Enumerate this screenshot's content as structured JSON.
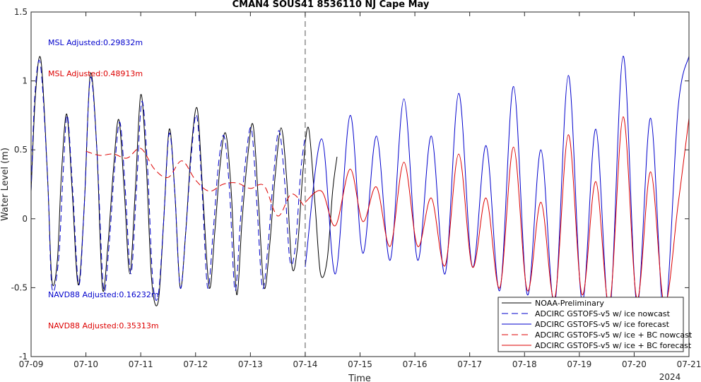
{
  "chart_data": {
    "type": "line",
    "title": "CMAN4 SOUS41 8536110 NJ Cape May",
    "xlabel": "Time",
    "ylabel": "Water Level (m)",
    "x_unit": "days (07-09 .. 07-21)",
    "xlim": [
      0,
      12
    ],
    "ylim": [
      -1,
      1.5
    ],
    "x_ticks": [
      "07-09",
      "07-10",
      "07-11",
      "07-12",
      "07-13",
      "07-14",
      "07-15",
      "07-16",
      "07-17",
      "07-18",
      "07-19",
      "07-20",
      "07-21"
    ],
    "x_year_label": "2024",
    "y_ticks": [
      "-1",
      "-0.5",
      "0",
      "0.5",
      "1",
      "1.5"
    ],
    "y_tick_values": [
      -1,
      -0.5,
      0,
      0.5,
      1,
      1.5
    ],
    "nowcast_end": 5,
    "annotations": [
      {
        "text": "MSL Adjusted:0.29832m",
        "color": "#0000cc"
      },
      {
        "text": "MSL Adjusted:0.48913m",
        "color": "#dd0000"
      },
      {
        "text": "NAVD88 Adjusted:0.16232m",
        "color": "#0000cc"
      },
      {
        "text": "NAVD88 Adjusted:0.35313m",
        "color": "#dd0000"
      }
    ],
    "legend_position": "bottom-right",
    "series": [
      {
        "name": "NOAA-Preliminary",
        "color": "#000000",
        "style": "solid",
        "x": [
          0,
          0.08,
          0.18,
          0.3,
          0.38,
          0.48,
          0.55,
          0.65,
          0.75,
          0.86,
          0.97,
          1.08,
          1.2,
          1.3,
          1.4,
          1.5,
          1.6,
          1.7,
          1.8,
          1.9,
          2.0,
          2.1,
          2.2,
          2.32,
          2.42,
          2.52,
          2.62,
          2.72,
          2.82,
          2.92,
          3.03,
          3.13,
          3.25,
          3.35,
          3.45,
          3.55,
          3.65,
          3.75,
          3.85,
          3.95,
          4.05,
          4.15,
          4.25,
          4.35,
          4.45,
          4.56,
          4.66,
          4.76,
          4.86,
          4.96,
          5.06,
          5.18,
          5.28,
          5.4,
          5.5,
          5.58
        ],
        "y": [
          0.2,
          0.9,
          1.15,
          0.3,
          -0.45,
          -0.3,
          0.3,
          0.76,
          0.2,
          -0.48,
          0.1,
          1.05,
          0.5,
          -0.5,
          -0.2,
          0.35,
          0.72,
          0.2,
          -0.4,
          0.2,
          0.9,
          0.4,
          -0.45,
          -0.6,
          0.0,
          0.65,
          0.2,
          -0.5,
          -0.1,
          0.5,
          0.8,
          0.2,
          -0.5,
          -0.1,
          0.4,
          0.62,
          0.2,
          -0.55,
          0.0,
          0.45,
          0.68,
          0.1,
          -0.5,
          -0.2,
          0.3,
          0.66,
          0.3,
          -0.35,
          -0.2,
          0.35,
          0.66,
          0.1,
          -0.4,
          -0.3,
          0.2,
          0.45
        ]
      },
      {
        "name": "ADCIRC GSTOFS-v5 w/ ice nowcast",
        "color": "#0000cc",
        "style": "dashed",
        "x": [
          0,
          0.07,
          0.17,
          0.3,
          0.38,
          0.5,
          0.58,
          0.66,
          0.76,
          0.87,
          0.97,
          1.08,
          1.2,
          1.32,
          1.42,
          1.52,
          1.62,
          1.72,
          1.82,
          1.92,
          2.02,
          2.12,
          2.22,
          2.32,
          2.42,
          2.52,
          2.62,
          2.72,
          2.82,
          2.92,
          3.02,
          3.12,
          3.22,
          3.32,
          3.42,
          3.52,
          3.62,
          3.72,
          3.82,
          3.92,
          4.02,
          4.12,
          4.22,
          4.32,
          4.42,
          4.52,
          4.62,
          4.72,
          4.82,
          4.92,
          5.0
        ],
        "y": [
          0.2,
          0.9,
          1.12,
          0.3,
          -0.5,
          -0.3,
          0.3,
          0.75,
          0.2,
          -0.48,
          0.1,
          1.02,
          0.5,
          -0.5,
          -0.2,
          0.35,
          0.7,
          0.2,
          -0.4,
          0.2,
          0.85,
          0.4,
          -0.45,
          -0.55,
          0.0,
          0.62,
          0.2,
          -0.5,
          -0.1,
          0.45,
          0.75,
          0.2,
          -0.5,
          -0.1,
          0.4,
          0.6,
          0.2,
          -0.52,
          0.0,
          0.45,
          0.65,
          0.1,
          -0.5,
          -0.2,
          0.3,
          0.64,
          0.3,
          -0.3,
          -0.2,
          0.35,
          0.6
        ]
      },
      {
        "name": "ADCIRC GSTOFS-v5 w/ ice forecast",
        "color": "#0000cc",
        "style": "solid",
        "x": [
          5.0,
          5.3,
          5.55,
          5.82,
          6.05,
          6.3,
          6.55,
          6.8,
          7.05,
          7.3,
          7.55,
          7.8,
          8.05,
          8.3,
          8.55,
          8.8,
          9.05,
          9.3,
          9.55,
          9.8,
          10.05,
          10.3,
          10.55,
          10.8,
          11.05,
          11.3,
          11.55,
          11.8,
          12.0
        ],
        "y": [
          -0.35,
          0.58,
          -0.4,
          0.75,
          -0.25,
          0.6,
          -0.3,
          0.87,
          -0.3,
          0.6,
          -0.4,
          0.91,
          -0.35,
          0.53,
          -0.52,
          0.96,
          -0.55,
          0.5,
          -0.62,
          1.04,
          -0.6,
          0.65,
          -0.68,
          1.18,
          -0.62,
          0.73,
          -0.72,
          0.8,
          1.18
        ]
      },
      {
        "name": "ADCIRC GSTOFS-v5 w/ ice + BC nowcast",
        "color": "#dd0000",
        "style": "dashed",
        "x": [
          1.0,
          1.25,
          1.5,
          1.75,
          2.0,
          2.25,
          2.5,
          2.75,
          3.0,
          3.25,
          3.5,
          3.75,
          4.0,
          4.25,
          4.5,
          4.75,
          5.0
        ],
        "y": [
          0.49,
          0.46,
          0.47,
          0.44,
          0.51,
          0.36,
          0.3,
          0.42,
          0.28,
          0.2,
          0.25,
          0.26,
          0.22,
          0.24,
          0.02,
          0.18,
          0.08
        ]
      },
      {
        "name": "ADCIRC GSTOFS-v5 w/ ice + BC forecast",
        "color": "#dd0000",
        "style": "solid",
        "x": [
          5.0,
          5.3,
          5.55,
          5.82,
          6.05,
          6.3,
          6.55,
          6.8,
          7.05,
          7.3,
          7.55,
          7.8,
          8.05,
          8.3,
          8.55,
          8.8,
          9.05,
          9.3,
          9.55,
          9.8,
          10.05,
          10.3,
          10.55,
          10.8,
          11.05,
          11.3,
          11.55,
          11.8,
          12.0
        ],
        "y": [
          0.12,
          0.2,
          -0.05,
          0.36,
          -0.02,
          0.23,
          -0.2,
          0.41,
          -0.2,
          0.15,
          -0.34,
          0.47,
          -0.35,
          0.15,
          -0.5,
          0.52,
          -0.52,
          0.12,
          -0.58,
          0.61,
          -0.55,
          0.27,
          -0.62,
          0.74,
          -0.58,
          0.34,
          -0.62,
          0.1,
          0.73
        ]
      }
    ]
  }
}
